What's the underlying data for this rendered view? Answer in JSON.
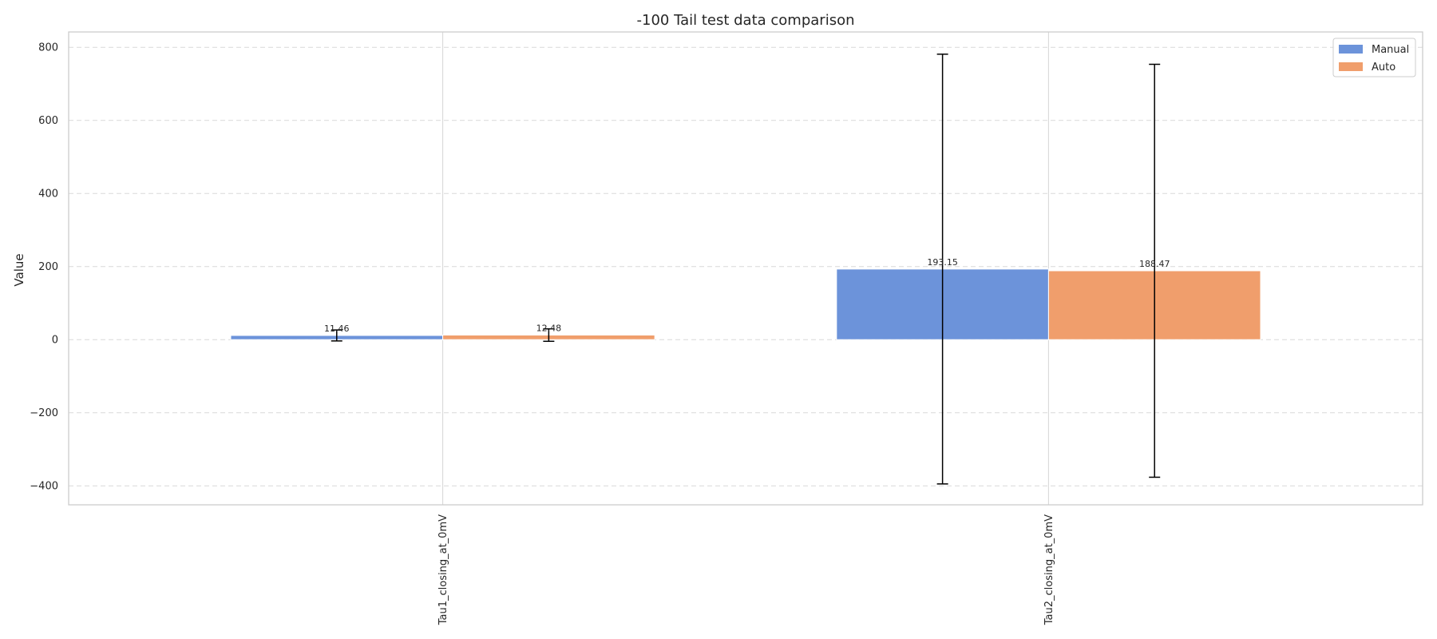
{
  "chart_data": {
    "type": "bar",
    "title": "-100 Tail test data comparison",
    "xlabel": "",
    "ylabel": "Value",
    "categories": [
      "Tau1_closing_at_0mV",
      "Tau2_closing_at_0mV"
    ],
    "series": [
      {
        "name": "Manual",
        "color": "#6c93da",
        "values": [
          11.46,
          193.15
        ],
        "error": [
          15,
          588
        ],
        "labels": [
          "11.46",
          "193.15"
        ]
      },
      {
        "name": "Auto",
        "color": "#f09e6c",
        "values": [
          12.48,
          188.47
        ],
        "error": [
          17,
          565
        ],
        "labels": [
          "12.48",
          "188.47"
        ]
      }
    ],
    "ylim": [
      -452,
      842
    ],
    "yticks": [
      -400,
      -200,
      0,
      200,
      400,
      600,
      800
    ],
    "ytick_labels": [
      "−400",
      "−200",
      "0",
      "200",
      "400",
      "600",
      "800"
    ],
    "grid": "y-dashed",
    "legend_position": "top-right"
  }
}
